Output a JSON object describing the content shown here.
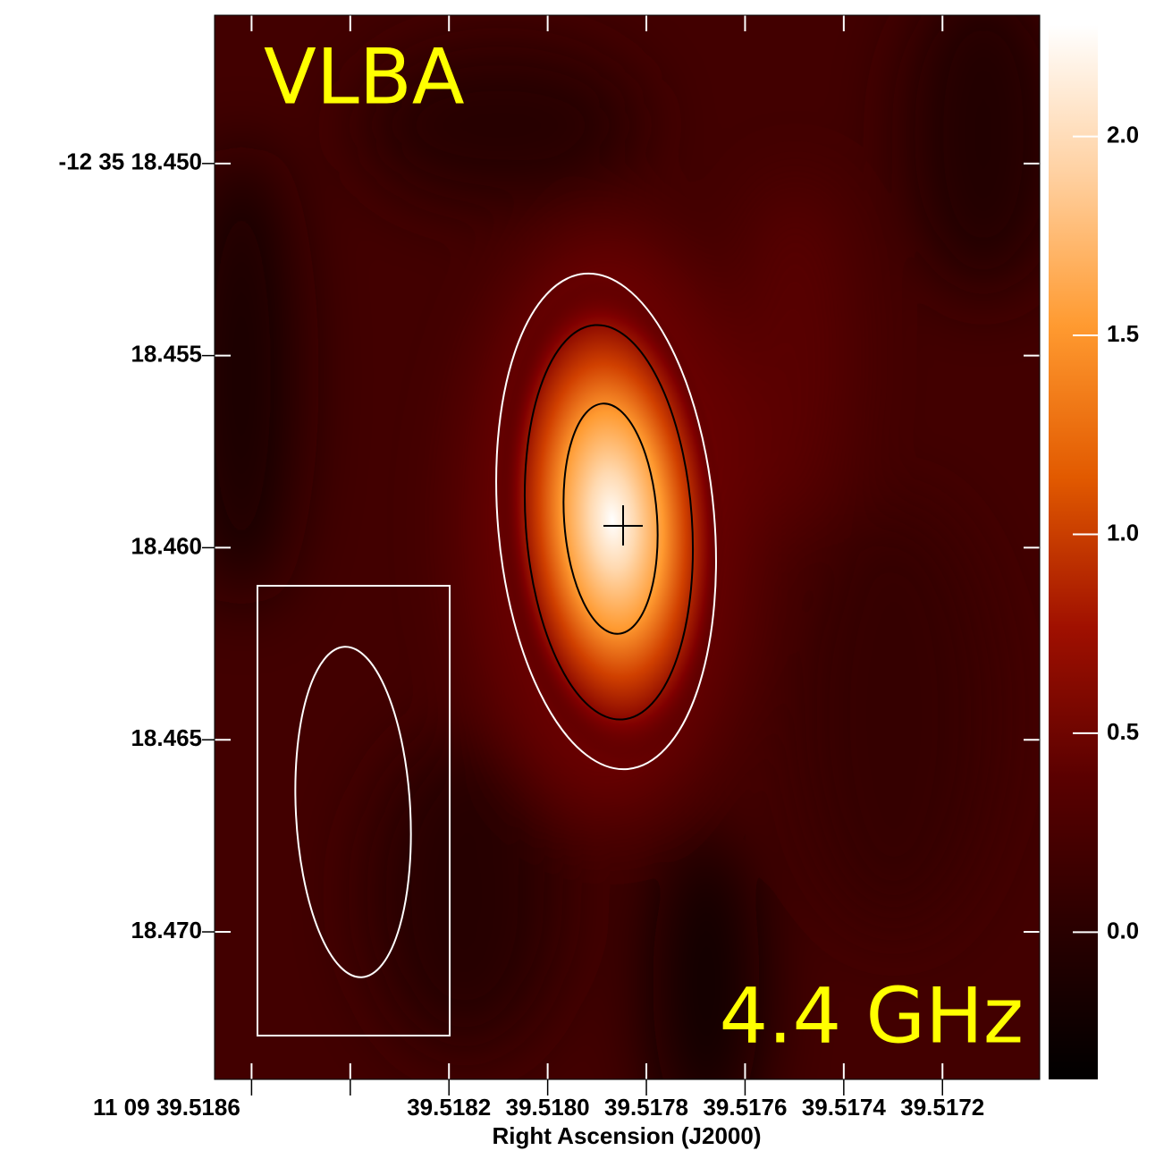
{
  "chart_data": {
    "type": "image",
    "annotations": [
      "VLBA",
      "4.4 GHz"
    ],
    "xlabel": "Right Ascension (J2000)",
    "xlim": [
      39.518675,
      39.517003
    ],
    "xticks": [
      {
        "value": 39.5186,
        "label": "11 09 39.5186"
      },
      {
        "value": 39.5184,
        "label": null
      },
      39.5182,
      {
        "value": 39.518,
        "label": "39.5180"
      },
      39.5178,
      39.5176,
      39.5174,
      39.5172
    ],
    "ylim": [
      18.47384,
      18.44614
    ],
    "yticks": [
      {
        "value": 18.45,
        "label": "-12 35 18.450"
      },
      18.455,
      {
        "value": 18.46,
        "label": "18.460"
      },
      18.465,
      {
        "value": 18.47,
        "label": "18.470"
      }
    ],
    "colorbar": {
      "clim": [
        -0.37,
        2.28
      ],
      "ticks": [
        {
          "value": 0,
          "label": "0.0"
        },
        0.5,
        {
          "value": 1,
          "label": "1.0"
        },
        1.5,
        {
          "value": 2,
          "label": "2.0"
        }
      ],
      "colormap": [
        "#000000",
        "#2a0000",
        "#5a0000",
        "#a01000",
        "#e25a00",
        "#ff9a30",
        "#ffd0a0",
        "#ffffff"
      ]
    }
  }
}
